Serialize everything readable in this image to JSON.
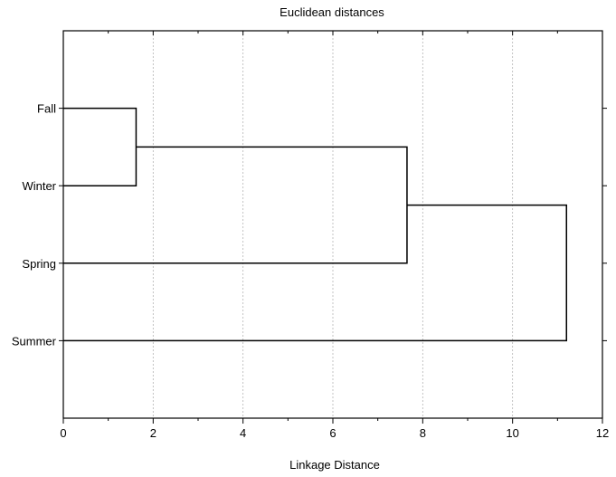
{
  "chart_data": {
    "type": "dendrogram",
    "orientation": "horizontal",
    "title": "Euclidean distances",
    "xlabel": "Linkage Distance",
    "ylabel": "",
    "xlim": [
      0,
      12
    ],
    "x_ticks": [
      "0",
      "2",
      "4",
      "6",
      "8",
      "10",
      "12"
    ],
    "grid": true,
    "leaves": [
      "Fall",
      "Winter",
      "Spring",
      "Summer"
    ],
    "merges": [
      {
        "left": "Fall",
        "right": "Winter",
        "distance": 1.62
      },
      {
        "left": "Fall+Winter",
        "right": "Spring",
        "distance": 7.65
      },
      {
        "left": "Fall+Winter+Spring",
        "right": "Summer",
        "distance": 11.2
      }
    ]
  }
}
